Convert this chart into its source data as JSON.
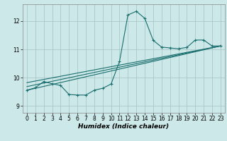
{
  "xlabel": "Humidex (Indice chaleur)",
  "bg_color": "#cce8e8",
  "grid_color": "#aac8c8",
  "line_color": "#1a6e6e",
  "xlim": [
    -0.5,
    23.5
  ],
  "ylim": [
    8.75,
    12.6
  ],
  "yticks": [
    9,
    10,
    11,
    12
  ],
  "xticks": [
    0,
    1,
    2,
    3,
    4,
    5,
    6,
    7,
    8,
    9,
    10,
    11,
    12,
    13,
    14,
    15,
    16,
    17,
    18,
    19,
    20,
    21,
    22,
    23
  ],
  "line1_x": [
    0,
    1,
    2,
    3,
    4,
    5,
    6,
    7,
    8,
    9,
    10,
    11,
    12,
    13,
    14,
    15,
    16,
    17,
    18,
    19,
    20,
    21,
    22,
    23
  ],
  "line1_y": [
    9.55,
    9.64,
    9.86,
    9.78,
    9.72,
    9.4,
    9.38,
    9.38,
    9.55,
    9.62,
    9.77,
    10.57,
    12.22,
    12.35,
    12.1,
    11.32,
    11.08,
    11.05,
    11.02,
    11.07,
    11.33,
    11.33,
    11.12,
    11.12
  ],
  "line2_x": [
    0,
    23
  ],
  "line2_y": [
    9.55,
    11.12
  ],
  "line3_x": [
    0,
    23
  ],
  "line3_y": [
    9.68,
    11.12
  ],
  "line4_x": [
    0,
    23
  ],
  "line4_y": [
    9.82,
    11.12
  ]
}
